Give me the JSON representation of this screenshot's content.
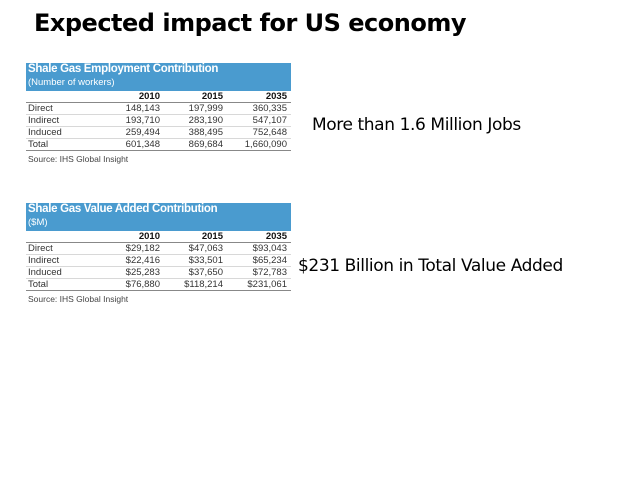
{
  "slide": {
    "title": "Expected impact for US economy"
  },
  "employment_table": {
    "title": "Shale Gas Employment Contribution",
    "subtitle": "(Number of workers)",
    "columns": [
      "2010",
      "2015",
      "2035"
    ],
    "rows": [
      {
        "label": "Direct",
        "values": [
          "148,143",
          "197,999",
          "360,335"
        ]
      },
      {
        "label": "Indirect",
        "values": [
          "193,710",
          "283,190",
          "547,107"
        ]
      },
      {
        "label": "Induced",
        "values": [
          "259,494",
          "388,495",
          "752,648"
        ]
      },
      {
        "label": "Total",
        "values": [
          "601,348",
          "869,684",
          "1,660,090"
        ]
      }
    ],
    "source": "Source: IHS Global Insight"
  },
  "value_table": {
    "title": "Shale Gas Value Added Contribution",
    "subtitle": "($M)",
    "columns": [
      "2010",
      "2015",
      "2035"
    ],
    "rows": [
      {
        "label": "Direct",
        "values": [
          "$29,182",
          "$47,063",
          "$93,043"
        ]
      },
      {
        "label": "Indirect",
        "values": [
          "$22,416",
          "$33,501",
          "$65,234"
        ]
      },
      {
        "label": "Induced",
        "values": [
          "$25,283",
          "$37,650",
          "$72,783"
        ]
      },
      {
        "label": "Total",
        "values": [
          "$76,880",
          "$118,214",
          "$231,061"
        ]
      }
    ],
    "source": "Source: IHS Global Insight"
  },
  "callouts": {
    "jobs": "More than 1.6 Million Jobs",
    "value": "$231 Billion in Total Value Added"
  }
}
